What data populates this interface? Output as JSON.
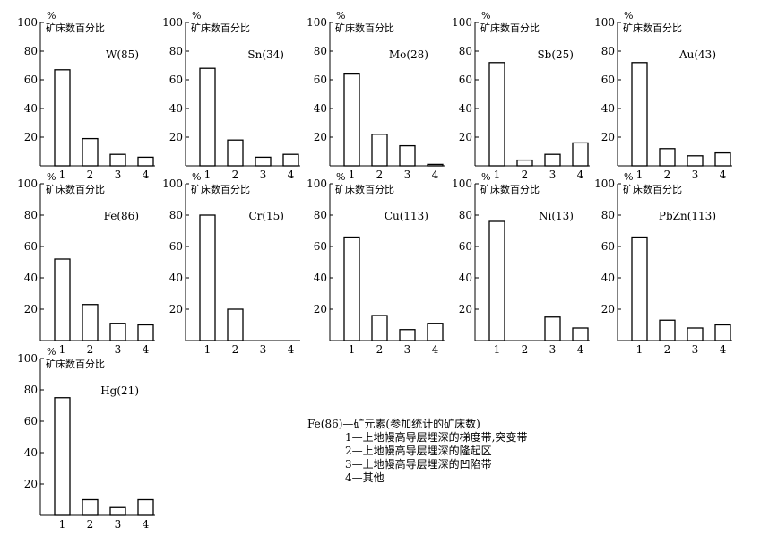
{
  "chart_data": [
    {
      "type": "bar",
      "title": "W(85)",
      "ylabel": "矿床数百分比",
      "yunit": "%",
      "categories": [
        "1",
        "2",
        "3",
        "4"
      ],
      "values": [
        67,
        19,
        8,
        6
      ],
      "ylim": [
        0,
        100
      ],
      "yticks": [
        20,
        40,
        60,
        80,
        100
      ]
    },
    {
      "type": "bar",
      "title": "Sn(34)",
      "ylabel": "矿床数百分比",
      "yunit": "%",
      "categories": [
        "1",
        "2",
        "3",
        "4"
      ],
      "values": [
        68,
        18,
        6,
        8
      ],
      "ylim": [
        0,
        100
      ],
      "yticks": [
        20,
        40,
        60,
        80,
        100
      ]
    },
    {
      "type": "bar",
      "title": "Mo(28)",
      "ylabel": "矿床数百分比",
      "yunit": "%",
      "categories": [
        "1",
        "2",
        "3",
        "4"
      ],
      "values": [
        64,
        22,
        14,
        1
      ],
      "ylim": [
        0,
        100
      ],
      "yticks": [
        20,
        40,
        60,
        80,
        100
      ]
    },
    {
      "type": "bar",
      "title": "Sb(25)",
      "ylabel": "矿床数百分比",
      "yunit": "%",
      "categories": [
        "1",
        "2",
        "3",
        "4"
      ],
      "values": [
        72,
        4,
        8,
        16
      ],
      "ylim": [
        0,
        100
      ],
      "yticks": [
        20,
        40,
        60,
        80,
        100
      ]
    },
    {
      "type": "bar",
      "title": "Au(43)",
      "ylabel": "矿床数百分比",
      "yunit": "%",
      "categories": [
        "1",
        "2",
        "3",
        "4"
      ],
      "values": [
        72,
        12,
        7,
        9
      ],
      "ylim": [
        0,
        100
      ],
      "yticks": [
        20,
        40,
        60,
        80,
        100
      ]
    },
    {
      "type": "bar",
      "title": "Fe(86)",
      "ylabel": "矿床数百分比",
      "yunit": "%",
      "categories": [
        "1",
        "2",
        "3",
        "4"
      ],
      "values": [
        52,
        23,
        11,
        10
      ],
      "ylim": [
        0,
        100
      ],
      "yticks": [
        20,
        40,
        60,
        80,
        100
      ]
    },
    {
      "type": "bar",
      "title": "Cr(15)",
      "ylabel": "矿床数百分比",
      "yunit": "%",
      "categories": [
        "1",
        "2",
        "3",
        "4"
      ],
      "values": [
        80,
        20,
        0,
        0
      ],
      "ylim": [
        0,
        100
      ],
      "yticks": [
        20,
        40,
        60,
        80,
        100
      ]
    },
    {
      "type": "bar",
      "title": "Cu(113)",
      "ylabel": "矿床数百分比",
      "yunit": "%",
      "categories": [
        "1",
        "2",
        "3",
        "4"
      ],
      "values": [
        66,
        16,
        7,
        11
      ],
      "ylim": [
        0,
        100
      ],
      "yticks": [
        20,
        40,
        60,
        80,
        100
      ]
    },
    {
      "type": "bar",
      "title": "Ni(13)",
      "ylabel": "矿床数百分比",
      "yunit": "%",
      "categories": [
        "1",
        "2",
        "3",
        "4"
      ],
      "values": [
        76,
        0,
        15,
        8
      ],
      "ylim": [
        0,
        100
      ],
      "yticks": [
        20,
        40,
        60,
        80,
        100
      ]
    },
    {
      "type": "bar",
      "title": "PbZn(113)",
      "ylabel": "矿床数百分比",
      "yunit": "%",
      "categories": [
        "1",
        "2",
        "3",
        "4"
      ],
      "values": [
        66,
        13,
        8,
        10
      ],
      "ylim": [
        0,
        100
      ],
      "yticks": [
        20,
        40,
        60,
        80,
        100
      ]
    },
    {
      "type": "bar",
      "title": "Hg(21)",
      "ylabel": "矿床数百分比",
      "yunit": "%",
      "categories": [
        "1",
        "2",
        "3",
        "4"
      ],
      "values": [
        75,
        10,
        5,
        10
      ],
      "ylim": [
        0,
        100
      ],
      "yticks": [
        20,
        40,
        60,
        80,
        100
      ]
    }
  ],
  "legend": {
    "line0": "Fe(86)—矿元素(参加统计的矿床数)",
    "line1": "1—上地幔高导层埋深的梯度带,突变带",
    "line2": "2—上地幔高导层埋深的隆起区",
    "line3": "3—上地幔高导层埋深的凹陷带",
    "line4": "4—其他"
  }
}
